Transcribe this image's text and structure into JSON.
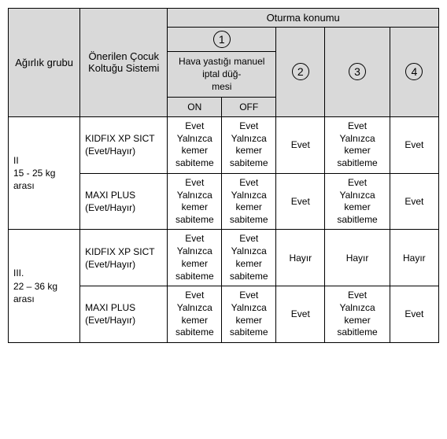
{
  "headers": {
    "weight_group": "Ağırlık grubu",
    "system": "Önerilen Çocuk Koltuğu Sistemi",
    "seating_position": "Oturma konumu",
    "airbag_switch": "Hava yastığı manuel iptal düğ-\nmesi",
    "on": "ON",
    "off": "OFF",
    "pos1": "1",
    "pos2": "2",
    "pos3": "3",
    "pos4": "4"
  },
  "groups": [
    {
      "label": "II\n15 - 25 kg arası",
      "rows": [
        {
          "system": "KIDFIX XP SICT (Evet/Hayır)",
          "on_top": "Evet",
          "on_btm": "Yalnızca kemer sabiteme",
          "off_top": "Evet",
          "off_btm": "Yalnızca kemer sabiteme",
          "p2": "Evet",
          "p3_top": "Evet",
          "p3_btm": "Yalnızca kemer sabitleme",
          "p4": "Evet"
        },
        {
          "system": "MAXI PLUS (Evet/Hayır)",
          "on_top": "Evet",
          "on_btm": "Yalnızca kemer sabiteme",
          "off_top": "Evet",
          "off_btm": "Yalnızca kemer sabiteme",
          "p2": "Evet",
          "p3_top": "Evet",
          "p3_btm": "Yalnızca kemer sabitleme",
          "p4": "Evet"
        }
      ]
    },
    {
      "label": "III.\n22 – 36 kg arası",
      "rows": [
        {
          "system": "KIDFIX XP SICT (Evet/Hayır)",
          "on_top": "Evet",
          "on_btm": "Yalnızca kemer sabiteme",
          "off_top": "Evet",
          "off_btm": "Yalnızca kemer sabiteme",
          "p2": "Hayır",
          "p3_top": "",
          "p3_btm": "Hayır",
          "p4": "Hayır"
        },
        {
          "system": "MAXI PLUS (Evet/Hayır)",
          "on_top": "Evet",
          "on_btm": "Yalnızca kemer sabiteme",
          "off_top": "Evet",
          "off_btm": "Yalnızca kemer sabiteme",
          "p2": "Evet",
          "p3_top": "Evet",
          "p3_btm": "Yalnızca kemer sabitleme",
          "p4": "Evet"
        }
      ]
    }
  ]
}
